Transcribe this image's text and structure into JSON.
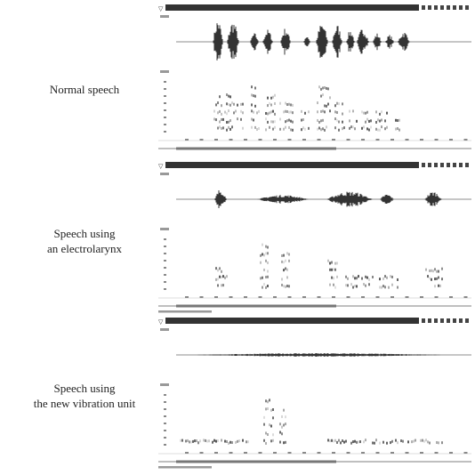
{
  "panels": [
    {
      "label_lines": [
        "Normal speech"
      ]
    },
    {
      "label_lines": [
        "Speech using",
        "an electrolarynx"
      ]
    },
    {
      "label_lines": [
        "Speech using",
        "the new vibration unit"
      ]
    }
  ]
}
